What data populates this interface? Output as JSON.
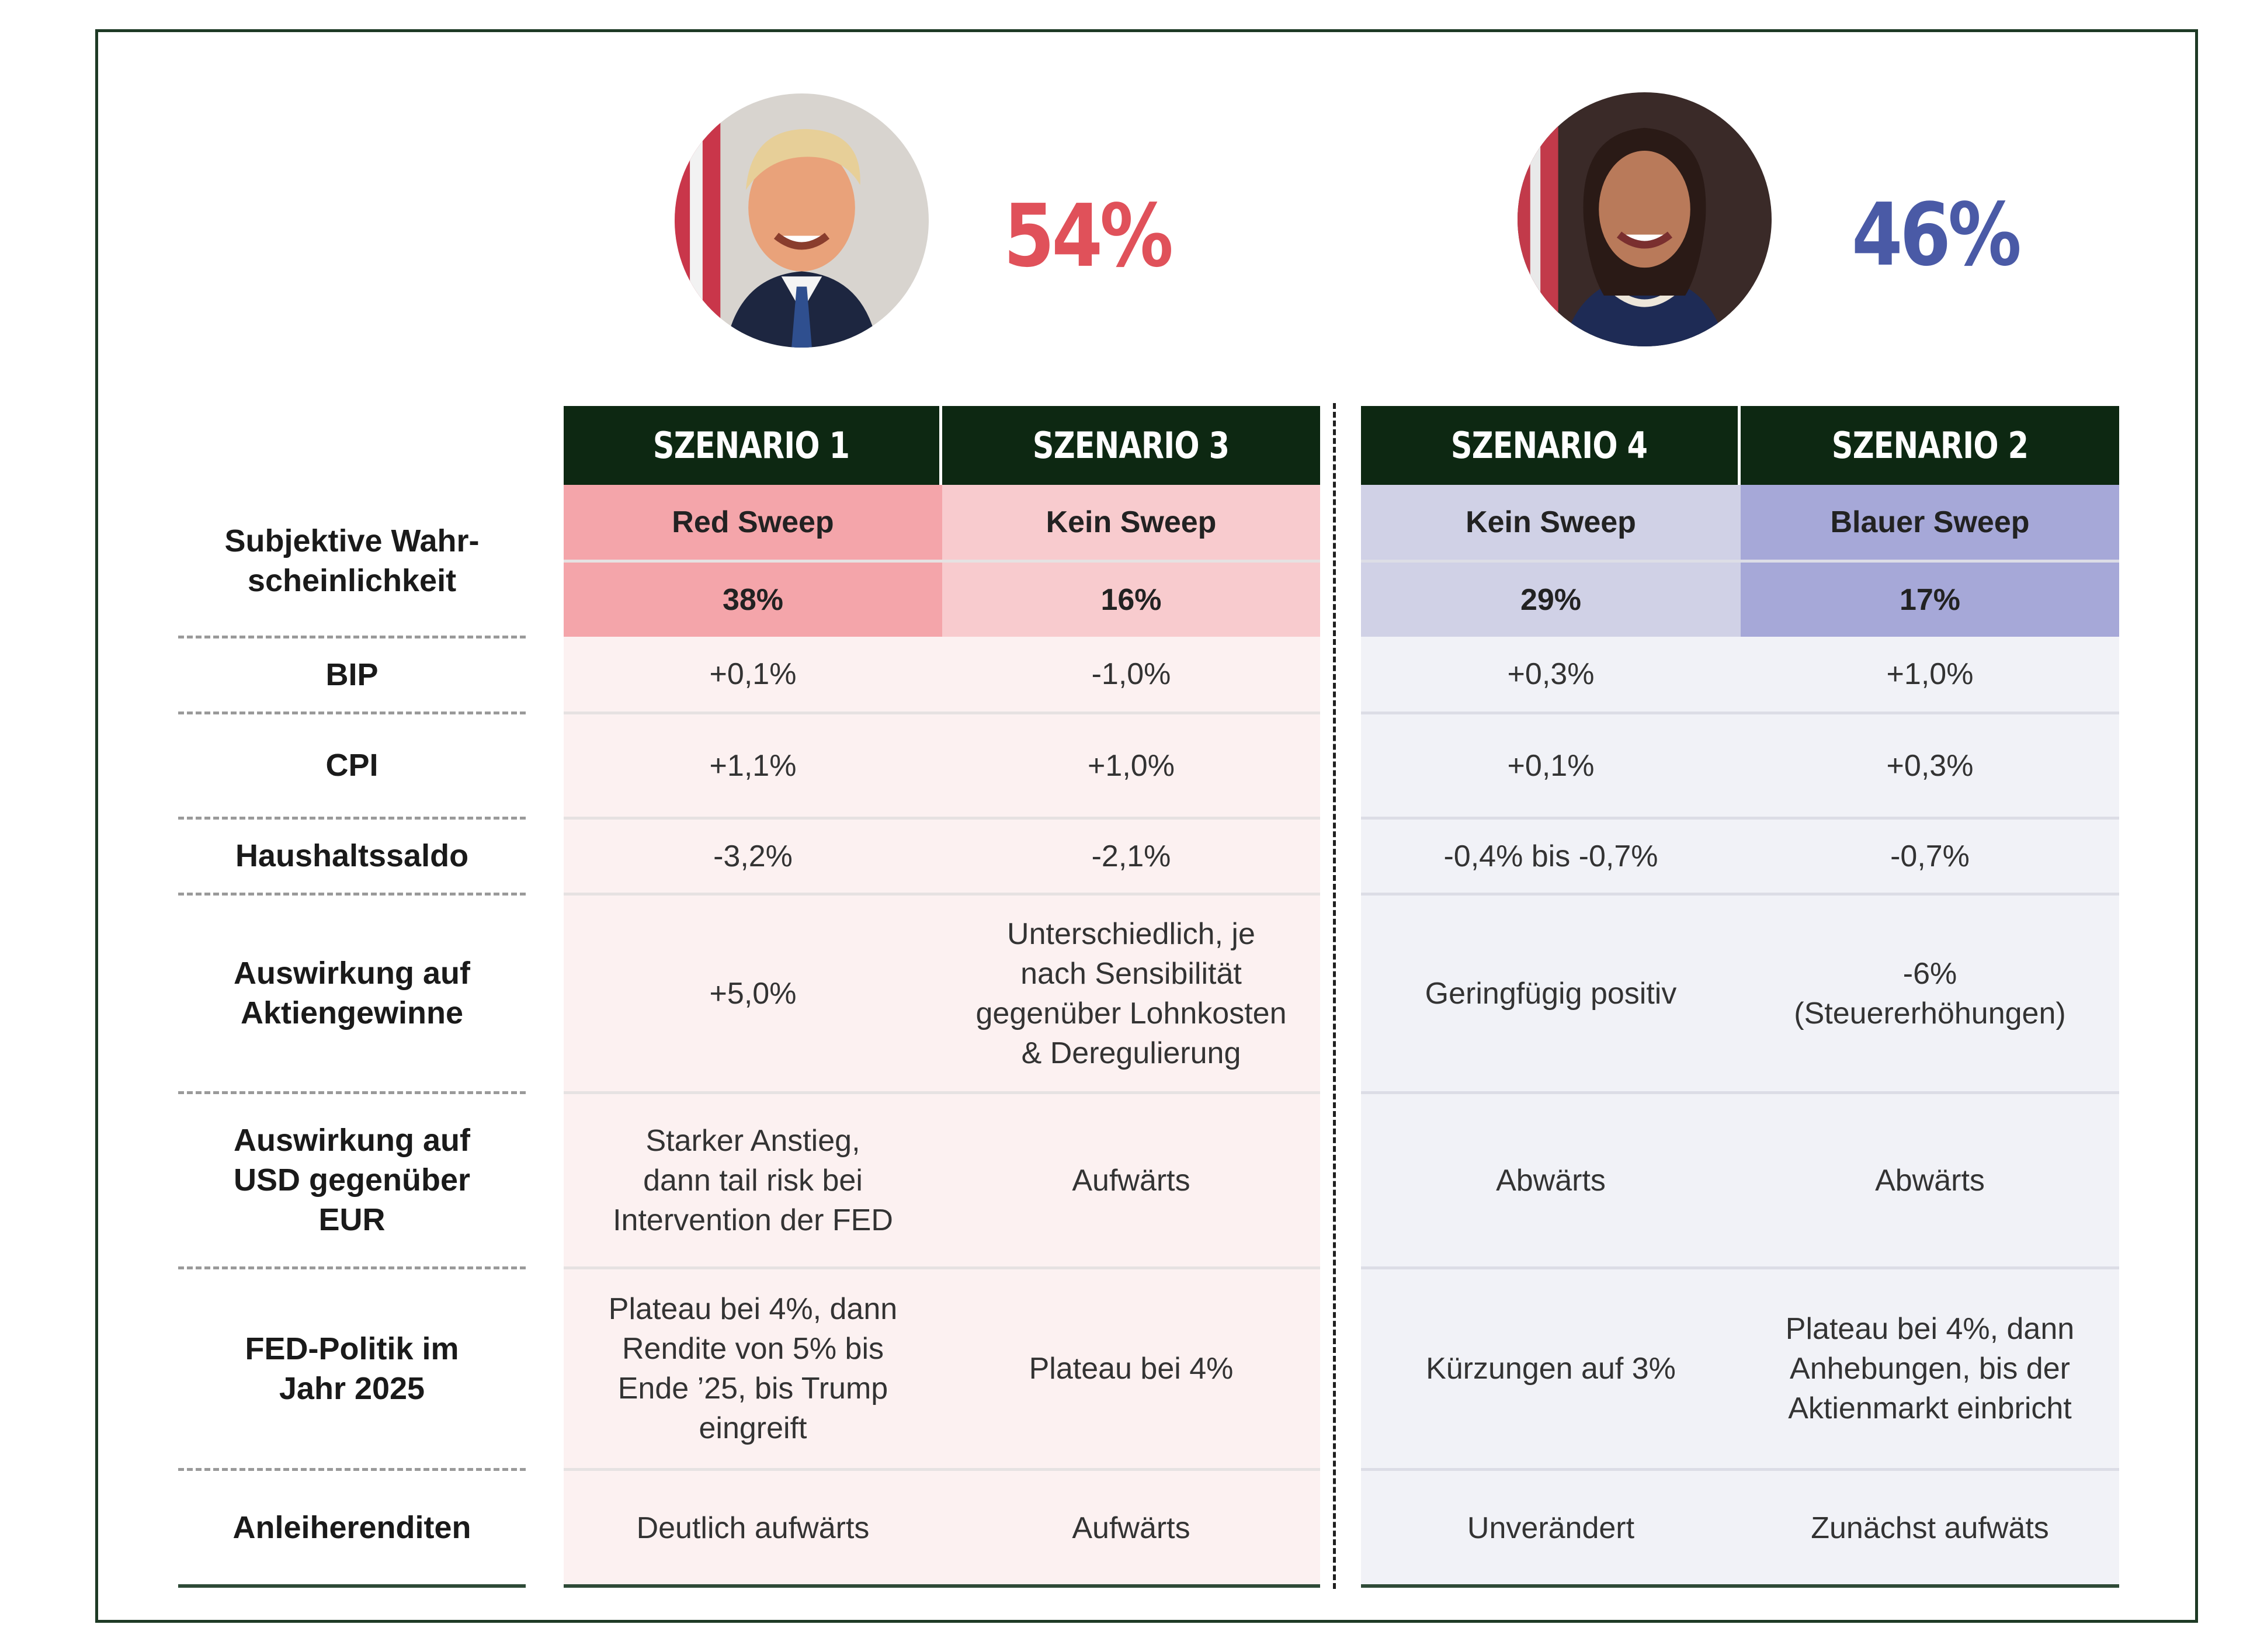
{
  "candidates": [
    {
      "name_icon": "trump-portrait",
      "percent": "54%",
      "color": "#e0515a"
    },
    {
      "name_icon": "harris-portrait",
      "percent": "46%",
      "color": "#4a5aa6"
    }
  ],
  "colors": {
    "header_bg": "#0d2812",
    "red_strong": "#f4a5aa",
    "red_light": "#f8cbce",
    "red_body": "#fcf1f1",
    "blue_light": "#d0d1e6",
    "blue_strong": "#a6a8d8",
    "blue_body": "#f1f2f7"
  },
  "scenarios": [
    {
      "header": "SZENARIO 1",
      "sweep": "Red Sweep",
      "prob": "38%"
    },
    {
      "header": "SZENARIO 3",
      "sweep": "Kein Sweep",
      "prob": "16%"
    },
    {
      "header": "SZENARIO 4",
      "sweep": "Kein Sweep",
      "prob": "29%"
    },
    {
      "header": "SZENARIO 2",
      "sweep": "Blauer Sweep",
      "prob": "17%"
    }
  ],
  "labels": {
    "prob": "Subjektive Wahr-\nscheinlichkeit",
    "bip": "BIP",
    "cpi": "CPI",
    "haushalt": "Haushaltssaldo",
    "aktien": "Auswirkung auf\nAktiengewinne",
    "usd": "Auswirkung auf\nUSD gegenüber\nEUR",
    "fed": "FED-Politik im\nJahr 2025",
    "anleihen": "Anleiherenditen"
  },
  "rows": {
    "bip": [
      "+0,1%",
      "-1,0%",
      "+0,3%",
      "+1,0%"
    ],
    "cpi": [
      "+1,1%",
      "+1,0%",
      "+0,1%",
      "+0,3%"
    ],
    "haushalt": [
      "-3,2%",
      "-2,1%",
      "-0,4% bis -0,7%",
      "-0,7%"
    ],
    "aktien": [
      "+5,0%",
      "Unterschiedlich, je\nnach Sensibilität\ngegenüber Lohnkosten\n& Deregulierung",
      "Geringfügig positiv",
      "-6%\n(Steuererhöhungen)"
    ],
    "usd": [
      "Starker Anstieg,\ndann tail risk bei\nIntervention der FED",
      "Aufwärts",
      "Abwärts",
      "Abwärts"
    ],
    "fed": [
      "Plateau bei 4%, dann\nRendite von 5% bis\nEnde ’25, bis Trump\neingreift",
      "Plateau bei 4%",
      "Kürzungen auf 3%",
      "Plateau bei 4%, dann\nAnhebungen, bis der\nAktienmarkt einbricht"
    ],
    "anleihen": [
      "Deutlich aufwärts",
      "Aufwärts",
      "Unverändert",
      "Zunächst aufwäts"
    ]
  }
}
